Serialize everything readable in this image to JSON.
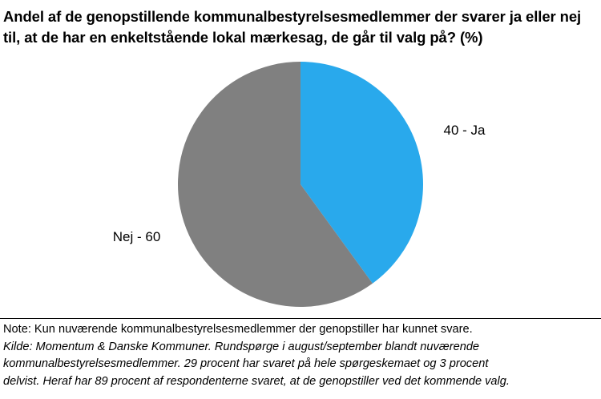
{
  "chart_data": {
    "type": "pie",
    "title": "Andel af de genopstillende kommunalbestyrelsesmedlemmer der svarer ja eller nej til, at de har en enkeltstående lokal mærkesag, de går til valg på? (%)",
    "slices": [
      {
        "label": "40 - Ja",
        "category": "Ja",
        "value": 40,
        "color": "#29a9ec"
      },
      {
        "label": "Nej - 60",
        "category": "Nej",
        "value": 60,
        "color": "#808080"
      }
    ],
    "start_angle_deg": 0,
    "direction": "clockwise",
    "legend": "none"
  },
  "notes": {
    "note": "Note: Kun nuværende kommunalbestyrelsesmedlemmer der genopstiller har kunnet svare.",
    "source_lines": [
      "Kilde: Momentum & Danske Kommuner. Rundspørge i august/september blandt nuværende",
      "kommunalbestyrelsesmedlemmer. 29 procent har svaret på hele spørgeskemaet og 3 procent",
      "delvist. Heraf har 89 procent af respondenterne svaret, at de genopstiller ved det kommende valg."
    ]
  }
}
